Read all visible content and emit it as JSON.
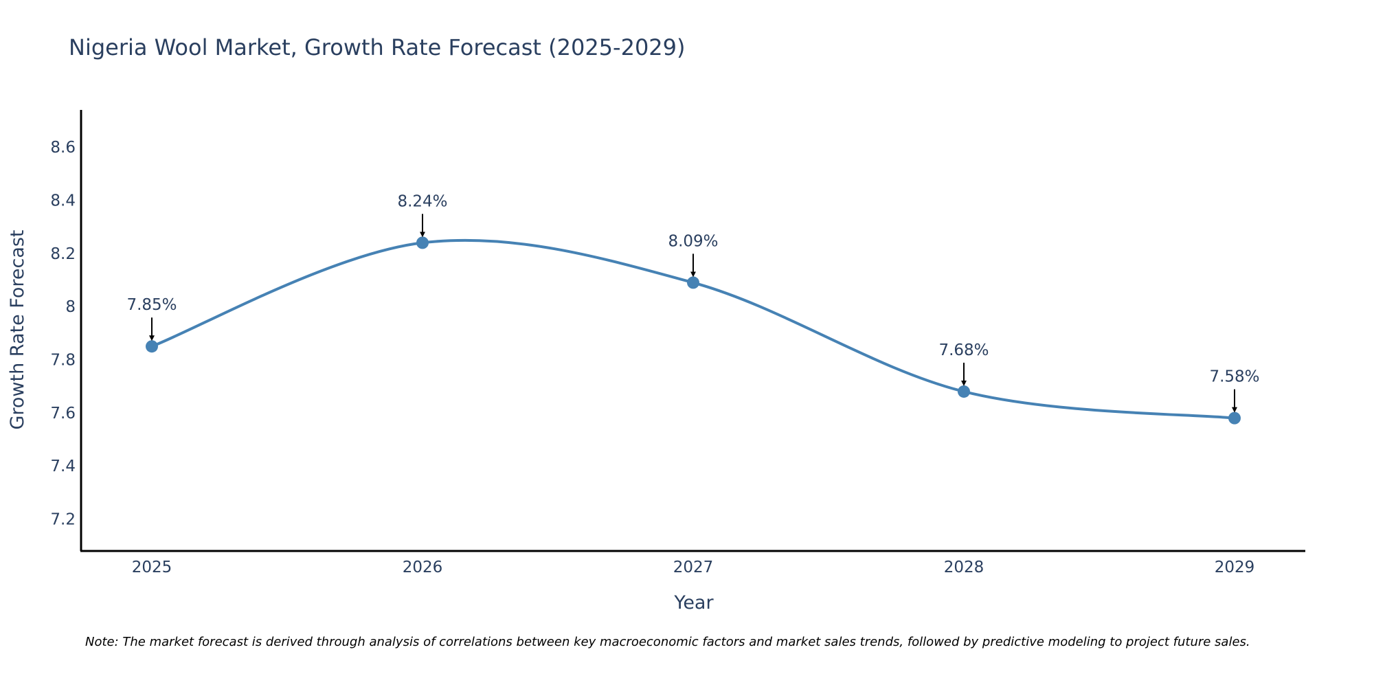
{
  "chart_data": {
    "type": "line",
    "title": "Nigeria Wool Market, Growth Rate Forecast (2025-2029)",
    "xlabel": "Year",
    "ylabel": "Growth Rate Forecast",
    "categories": [
      "2025",
      "2026",
      "2027",
      "2028",
      "2029"
    ],
    "values": [
      7.85,
      8.24,
      8.09,
      7.68,
      7.58
    ],
    "data_labels": [
      "7.85%",
      "8.24%",
      "8.09%",
      "7.68%",
      "7.58%"
    ],
    "y_ticks": [
      "7.2",
      "7.4",
      "7.6",
      "7.8",
      "8",
      "8.2",
      "8.4",
      "8.6"
    ],
    "ylim": [
      7.08,
      8.74
    ],
    "line_color": "#4682b4",
    "marker_color": "#4682b4",
    "grid": false,
    "note": "Note: The market forecast is derived through analysis of correlations between key macroeconomic factors and market sales trends, followed by predictive modeling to project future sales."
  }
}
